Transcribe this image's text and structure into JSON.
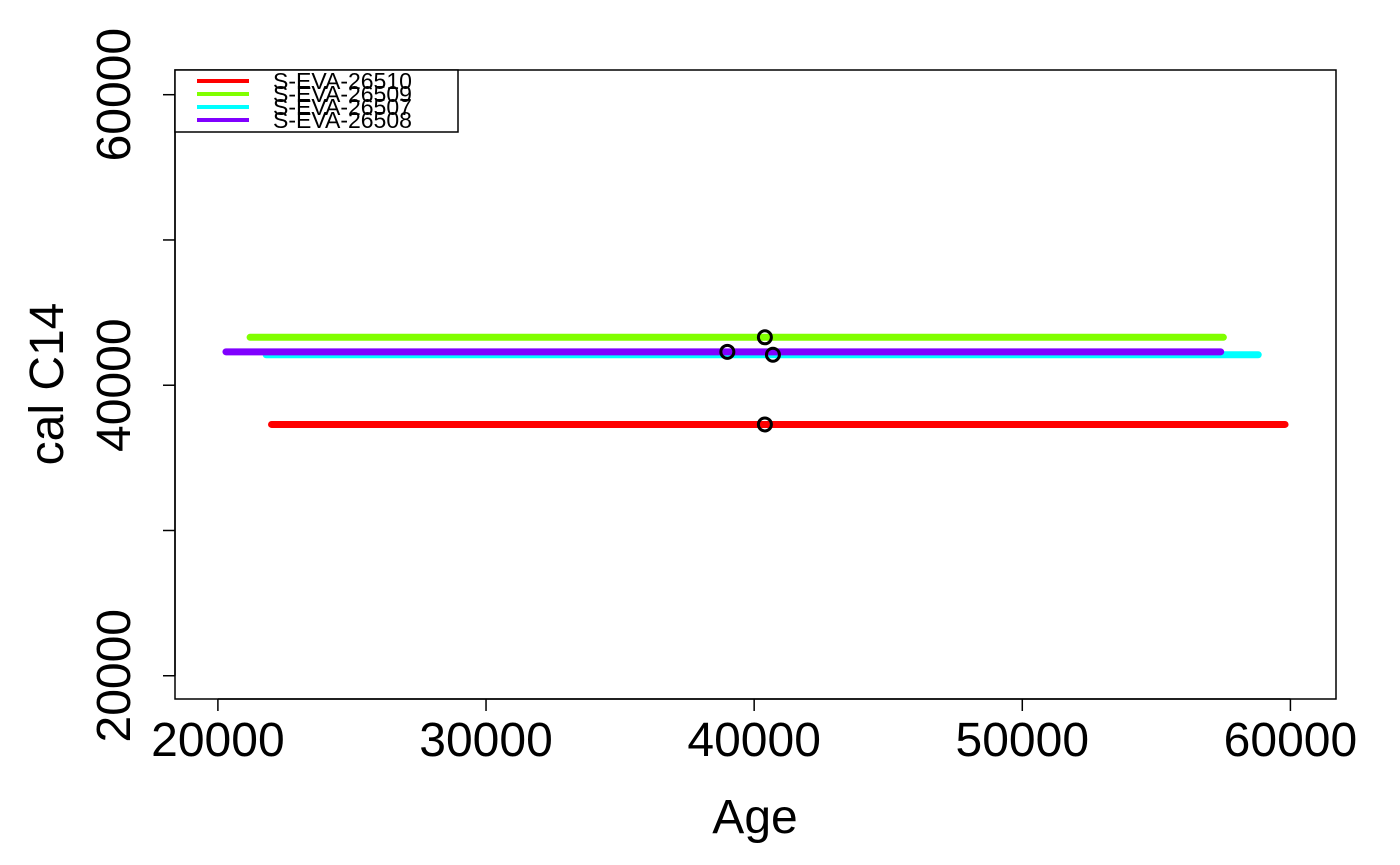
{
  "chart_data": {
    "type": "scatter",
    "xlabel": "Age",
    "ylabel": "cal C14",
    "xlim": [
      18400,
      61700
    ],
    "ylim": [
      18400,
      61700
    ],
    "x_ticks": [
      20000,
      30000,
      40000,
      50000,
      60000
    ],
    "x_tick_labels": [
      "20000",
      "30000",
      "40000",
      "50000",
      "60000"
    ],
    "y_ticks": [
      20000,
      30000,
      40000,
      50000,
      60000
    ],
    "y_tick_labels": [
      "20000",
      "",
      "40000",
      "",
      "60000"
    ],
    "grid": false,
    "legend_position": "top-left",
    "series": [
      {
        "name": "S-EVA-26510",
        "color": "#ff0000",
        "range": [
          22000,
          59800
        ],
        "point": [
          40400,
          37300
        ]
      },
      {
        "name": "S-EVA-26509",
        "color": "#80ff00",
        "range": [
          21200,
          57500
        ],
        "point": [
          40400,
          43300
        ]
      },
      {
        "name": "S-EVA-26507",
        "color": "#00ffff",
        "range": [
          21800,
          58800
        ],
        "point": [
          40700,
          42100
        ]
      },
      {
        "name": "S-EVA-26508",
        "color": "#8000ff",
        "range": [
          20300,
          57400
        ],
        "point": [
          39000,
          42300
        ]
      }
    ]
  }
}
